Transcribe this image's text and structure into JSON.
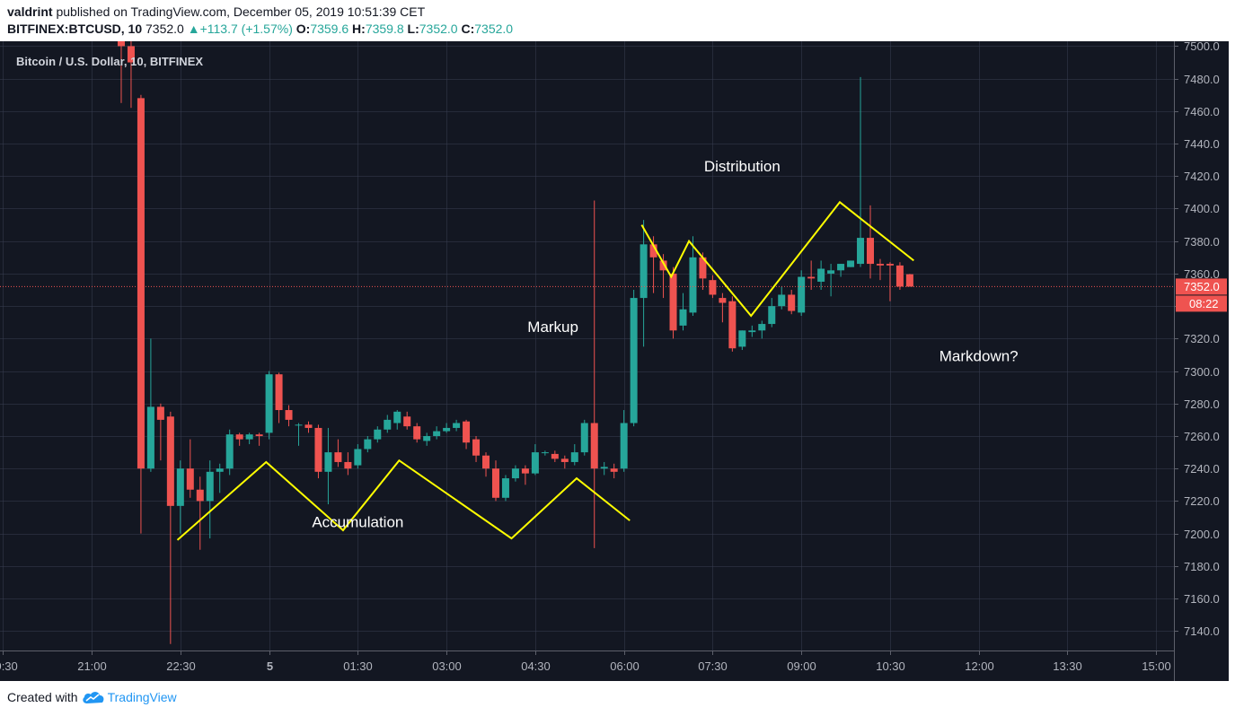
{
  "header": {
    "author": "valdrint",
    "published_text": "published on TradingView.com, December 05, 2019 10:51:39 CET",
    "symbol": "BITFINEX:BTCUSD, 10",
    "last_price": "7352.0",
    "change": "+113.7 (+1.57%)",
    "o_label": "O:",
    "o_value": "7359.6",
    "h_label": "H:",
    "h_value": "7359.8",
    "l_label": "L:",
    "l_value": "7352.0",
    "c_label": "C:",
    "c_value": "7352.0"
  },
  "footer": {
    "created_with": "Created with",
    "brand": "TradingView"
  },
  "colors": {
    "background": "#131722",
    "up": "#26a69a",
    "down": "#ef5350",
    "annotation": "#ffff00",
    "grid": "#363c4e",
    "axis_text": "#b2b5be"
  },
  "chart_data": {
    "type": "candlestick",
    "title": "Bitcoin / U.S. Dollar, 10, BITFINEX",
    "ylim": [
      7128,
      7503
    ],
    "y_ticks": [
      7140,
      7160,
      7180,
      7200,
      7220,
      7240,
      7260,
      7280,
      7300,
      7320,
      7340,
      7360,
      7380,
      7400,
      7420,
      7440,
      7460,
      7480,
      7500
    ],
    "y_tick_labels": [
      "7140.0",
      "7160.0",
      "7180.0",
      "7200.0",
      "7220.0",
      "7240.0",
      "7260.0",
      "7280.0",
      "7300.0",
      "7320.0",
      "7340.0",
      "7360.0",
      "7380.0",
      "7400.0",
      "7420.0",
      "7440.0",
      "7460.0",
      "7480.0",
      "7500.0"
    ],
    "x_ticks": [
      "19:30",
      "21:00",
      "22:30",
      "5",
      "01:30",
      "03:00",
      "04:30",
      "06:00",
      "07:30",
      "09:00",
      "10:30",
      "12:00",
      "13:30",
      "15:00"
    ],
    "x_tick_hours": [
      19.5,
      21,
      22.5,
      24,
      25.5,
      27,
      28.5,
      30,
      31.5,
      33,
      34.5,
      36,
      37.5,
      39
    ],
    "xlim_hours": [
      19.45,
      39.3
    ],
    "candle_interval_minutes": 10,
    "candles": [
      {
        "t": 21.5,
        "o": 7510,
        "h": 7515,
        "l": 7465,
        "c": 7500
      },
      {
        "t": 21.6667,
        "o": 7500,
        "h": 7505,
        "l": 7462,
        "c": 7490
      },
      {
        "t": 21.8333,
        "o": 7468,
        "h": 7470,
        "l": 7200,
        "c": 7240
      },
      {
        "t": 22.0,
        "o": 7240,
        "h": 7320,
        "l": 7238,
        "c": 7278
      },
      {
        "t": 22.1667,
        "o": 7278,
        "h": 7280,
        "l": 7245,
        "c": 7270
      },
      {
        "t": 22.3333,
        "o": 7272,
        "h": 7275,
        "l": 7132,
        "c": 7217
      },
      {
        "t": 22.5,
        "o": 7217,
        "h": 7245,
        "l": 7200,
        "c": 7240
      },
      {
        "t": 22.6667,
        "o": 7240,
        "h": 7258,
        "l": 7222,
        "c": 7227
      },
      {
        "t": 22.8333,
        "o": 7227,
        "h": 7235,
        "l": 7190,
        "c": 7220
      },
      {
        "t": 23.0,
        "o": 7220,
        "h": 7245,
        "l": 7197,
        "c": 7238
      },
      {
        "t": 23.1667,
        "o": 7238,
        "h": 7243,
        "l": 7225,
        "c": 7240
      },
      {
        "t": 23.3333,
        "o": 7240,
        "h": 7264,
        "l": 7236,
        "c": 7261
      },
      {
        "t": 23.5,
        "o": 7261,
        "h": 7262,
        "l": 7254,
        "c": 7258
      },
      {
        "t": 23.6667,
        "o": 7258,
        "h": 7262,
        "l": 7255,
        "c": 7261
      },
      {
        "t": 23.8333,
        "o": 7261,
        "h": 7262,
        "l": 7254,
        "c": 7260
      },
      {
        "t": 24.0,
        "o": 7262,
        "h": 7300,
        "l": 7258,
        "c": 7298
      },
      {
        "t": 24.1667,
        "o": 7298,
        "h": 7299,
        "l": 7268,
        "c": 7276
      },
      {
        "t": 24.3333,
        "o": 7276,
        "h": 7279,
        "l": 7266,
        "c": 7270
      },
      {
        "t": 24.5,
        "o": 7267,
        "h": 7268,
        "l": 7254,
        "c": 7267
      },
      {
        "t": 24.6667,
        "o": 7267,
        "h": 7269,
        "l": 7262,
        "c": 7265
      },
      {
        "t": 24.8333,
        "o": 7265,
        "h": 7267,
        "l": 7234,
        "c": 7238
      },
      {
        "t": 25.0,
        "o": 7238,
        "h": 7265,
        "l": 7218,
        "c": 7250
      },
      {
        "t": 25.1667,
        "o": 7250,
        "h": 7258,
        "l": 7241,
        "c": 7244
      },
      {
        "t": 25.3333,
        "o": 7244,
        "h": 7250,
        "l": 7236,
        "c": 7240
      },
      {
        "t": 25.5,
        "o": 7242,
        "h": 7255,
        "l": 7240,
        "c": 7252
      },
      {
        "t": 25.6667,
        "o": 7252,
        "h": 7260,
        "l": 7250,
        "c": 7258
      },
      {
        "t": 25.8333,
        "o": 7258,
        "h": 7266,
        "l": 7256,
        "c": 7264
      },
      {
        "t": 26.0,
        "o": 7264,
        "h": 7273,
        "l": 7262,
        "c": 7270
      },
      {
        "t": 26.1667,
        "o": 7268,
        "h": 7276,
        "l": 7264,
        "c": 7275
      },
      {
        "t": 26.3333,
        "o": 7272,
        "h": 7275,
        "l": 7264,
        "c": 7266
      },
      {
        "t": 26.5,
        "o": 7266,
        "h": 7268,
        "l": 7256,
        "c": 7258
      },
      {
        "t": 26.6667,
        "o": 7257,
        "h": 7262,
        "l": 7254,
        "c": 7260
      },
      {
        "t": 26.8333,
        "o": 7260,
        "h": 7266,
        "l": 7258,
        "c": 7263
      },
      {
        "t": 27.0,
        "o": 7263,
        "h": 7268,
        "l": 7262,
        "c": 7265
      },
      {
        "t": 27.1667,
        "o": 7265,
        "h": 7270,
        "l": 7263,
        "c": 7268
      },
      {
        "t": 27.3333,
        "o": 7269,
        "h": 7270,
        "l": 7252,
        "c": 7256
      },
      {
        "t": 27.5,
        "o": 7258,
        "h": 7260,
        "l": 7244,
        "c": 7248
      },
      {
        "t": 27.6667,
        "o": 7248,
        "h": 7250,
        "l": 7235,
        "c": 7240
      },
      {
        "t": 27.8333,
        "o": 7240,
        "h": 7245,
        "l": 7220,
        "c": 7222
      },
      {
        "t": 28.0,
        "o": 7222,
        "h": 7236,
        "l": 7220,
        "c": 7234
      },
      {
        "t": 28.1667,
        "o": 7234,
        "h": 7242,
        "l": 7232,
        "c": 7240
      },
      {
        "t": 28.3333,
        "o": 7240,
        "h": 7242,
        "l": 7230,
        "c": 7237
      },
      {
        "t": 28.5,
        "o": 7237,
        "h": 7255,
        "l": 7236,
        "c": 7250
      },
      {
        "t": 28.6667,
        "o": 7250,
        "h": 7251,
        "l": 7248,
        "c": 7250
      },
      {
        "t": 28.8333,
        "o": 7249,
        "h": 7251,
        "l": 7244,
        "c": 7246
      },
      {
        "t": 29.0,
        "o": 7246,
        "h": 7248,
        "l": 7240,
        "c": 7244
      },
      {
        "t": 29.1667,
        "o": 7244,
        "h": 7255,
        "l": 7242,
        "c": 7250
      },
      {
        "t": 29.3333,
        "o": 7250,
        "h": 7270,
        "l": 7248,
        "c": 7268
      },
      {
        "t": 29.5,
        "o": 7268,
        "h": 7405,
        "l": 7191,
        "c": 7240
      },
      {
        "t": 29.6667,
        "o": 7240,
        "h": 7244,
        "l": 7236,
        "c": 7241
      },
      {
        "t": 29.8333,
        "o": 7240,
        "h": 7243,
        "l": 7234,
        "c": 7238
      },
      {
        "t": 30.0,
        "o": 7240,
        "h": 7276,
        "l": 7238,
        "c": 7268
      },
      {
        "t": 30.1667,
        "o": 7268,
        "h": 7350,
        "l": 7266,
        "c": 7345
      },
      {
        "t": 30.3333,
        "o": 7345,
        "h": 7393,
        "l": 7315,
        "c": 7378
      },
      {
        "t": 30.5,
        "o": 7378,
        "h": 7383,
        "l": 7348,
        "c": 7370
      },
      {
        "t": 30.6667,
        "o": 7368,
        "h": 7372,
        "l": 7345,
        "c": 7362
      },
      {
        "t": 30.8333,
        "o": 7360,
        "h": 7364,
        "l": 7320,
        "c": 7325
      },
      {
        "t": 31.0,
        "o": 7328,
        "h": 7348,
        "l": 7325,
        "c": 7338
      },
      {
        "t": 31.1667,
        "o": 7336,
        "h": 7383,
        "l": 7334,
        "c": 7370
      },
      {
        "t": 31.3333,
        "o": 7370,
        "h": 7373,
        "l": 7350,
        "c": 7357
      },
      {
        "t": 31.5,
        "o": 7356,
        "h": 7359,
        "l": 7345,
        "c": 7347
      },
      {
        "t": 31.6667,
        "o": 7345,
        "h": 7348,
        "l": 7330,
        "c": 7342
      },
      {
        "t": 31.8333,
        "o": 7343,
        "h": 7346,
        "l": 7312,
        "c": 7314
      },
      {
        "t": 32.0,
        "o": 7315,
        "h": 7325,
        "l": 7313,
        "c": 7325
      },
      {
        "t": 32.1667,
        "o": 7324,
        "h": 7328,
        "l": 7321,
        "c": 7325
      },
      {
        "t": 32.3333,
        "o": 7325,
        "h": 7331,
        "l": 7320,
        "c": 7329
      },
      {
        "t": 32.5,
        "o": 7329,
        "h": 7345,
        "l": 7327,
        "c": 7340
      },
      {
        "t": 32.6667,
        "o": 7340,
        "h": 7352,
        "l": 7338,
        "c": 7347
      },
      {
        "t": 32.8333,
        "o": 7347,
        "h": 7350,
        "l": 7335,
        "c": 7337
      },
      {
        "t": 33.0,
        "o": 7336,
        "h": 7362,
        "l": 7334,
        "c": 7358
      },
      {
        "t": 33.1667,
        "o": 7358,
        "h": 7368,
        "l": 7350,
        "c": 7357
      },
      {
        "t": 33.3333,
        "o": 7355,
        "h": 7368,
        "l": 7350,
        "c": 7363
      },
      {
        "t": 33.5,
        "o": 7360,
        "h": 7366,
        "l": 7346,
        "c": 7362
      },
      {
        "t": 33.6667,
        "o": 7362,
        "h": 7366,
        "l": 7358,
        "c": 7366
      },
      {
        "t": 33.8333,
        "o": 7364,
        "h": 7368,
        "l": 7364,
        "c": 7368
      },
      {
        "t": 34.0,
        "o": 7366,
        "h": 7481,
        "l": 7364,
        "c": 7382
      },
      {
        "t": 34.1667,
        "o": 7382,
        "h": 7402,
        "l": 7357,
        "c": 7366
      },
      {
        "t": 34.3333,
        "o": 7366,
        "h": 7369,
        "l": 7356,
        "c": 7365
      },
      {
        "t": 34.5,
        "o": 7366,
        "h": 7367,
        "l": 7343,
        "c": 7365
      },
      {
        "t": 34.6667,
        "o": 7365,
        "h": 7367,
        "l": 7350,
        "c": 7352
      },
      {
        "t": 34.8333,
        "o": 7359.6,
        "h": 7359.8,
        "l": 7352,
        "c": 7352
      }
    ],
    "current_price": 7352.0,
    "current_price_label": "7352.0",
    "countdown_label": "08:22",
    "annotations": [
      {
        "text": "Accumulation",
        "x": 25.5,
        "y": 7204
      },
      {
        "text": "Markup",
        "x": 28.8,
        "y": 7324
      },
      {
        "text": "Distribution",
        "x": 32.0,
        "y": 7423
      },
      {
        "text": "Markdown?",
        "x": 36.0,
        "y": 7306
      }
    ],
    "pattern_lines": [
      [
        [
          22.45,
          7196
        ],
        [
          23.95,
          7244
        ],
        [
          25.25,
          7202
        ],
        [
          26.2,
          7245
        ],
        [
          28.1,
          7197
        ],
        [
          29.2,
          7234
        ],
        [
          30.1,
          7208
        ]
      ],
      [
        [
          30.3,
          7390
        ],
        [
          30.8,
          7358
        ],
        [
          31.1,
          7380
        ],
        [
          32.15,
          7334
        ],
        [
          33.65,
          7404
        ],
        [
          34.9,
          7368
        ]
      ]
    ]
  }
}
